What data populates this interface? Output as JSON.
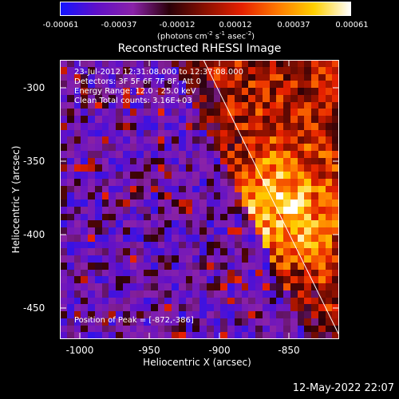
{
  "colorbar": {
    "ticks": [
      "-0.00061",
      "-0.00037",
      "-0.00012",
      "0.00012",
      "0.00037",
      "0.00061"
    ],
    "units_main": "(photons cm",
    "units_sup1": "-2",
    "units_s": " s",
    "units_sup2": "-1",
    "units_asec": " asec",
    "units_sup3": "-2",
    "units_end": ")"
  },
  "title": "Reconstructed RHESSI Image",
  "info": {
    "line1": "23-Jul-2012 12:31:08.000 to 12:37:08.000",
    "line2": "Detectors: 3F 5F 6F 7F 8F, Att 0",
    "line3": "Energy Range: 12.0 - 25.0 keV",
    "line4": "Clean     Total counts: 3.16E+03"
  },
  "peak": "Position of Peak = [-872,-386]",
  "axes": {
    "xlabel": "Heliocentric X (arcsec)",
    "ylabel": "Heliocentric Y (arcsec)",
    "xticks": [
      "-1000",
      "-950",
      "-900",
      "-850"
    ],
    "yticks": [
      "-300",
      "-350",
      "-400",
      "-450"
    ],
    "xrange": [
      -1020,
      -820
    ],
    "yrange": [
      -470,
      -280
    ]
  },
  "image": {
    "peak_x": -872,
    "peak_y": -386,
    "colormap": [
      "#1414ff",
      "#6010c8",
      "#8a22a8",
      "#2a0008",
      "#8a1000",
      "#e62000",
      "#ff7a00",
      "#ffd000",
      "#ffffff"
    ]
  },
  "footer_date": "12-May-2022 22:07"
}
